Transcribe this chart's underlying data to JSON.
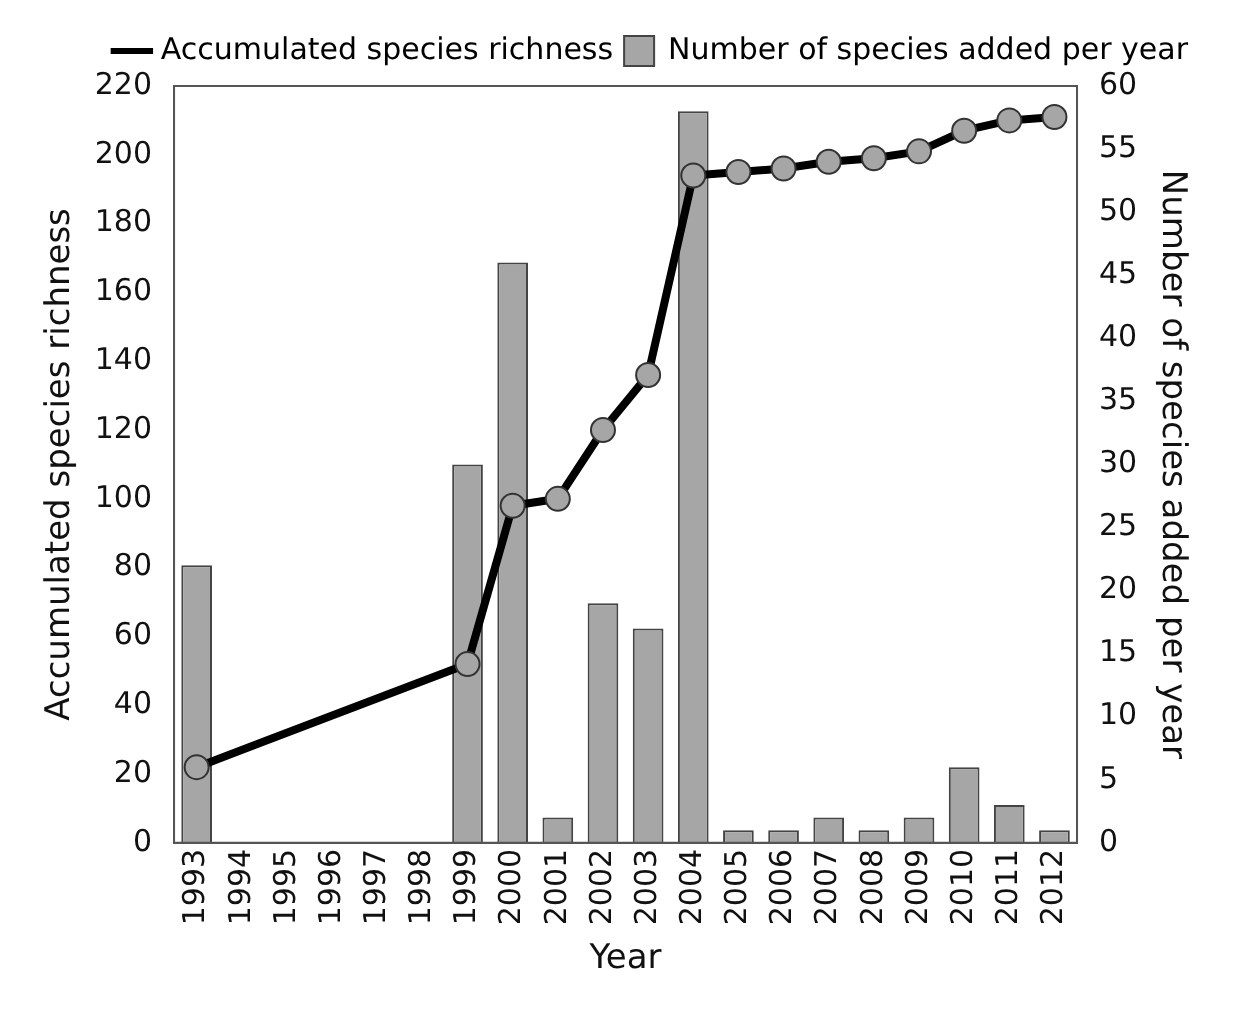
{
  "chart_data": {
    "type": "bar",
    "xlabel": "Year",
    "ylabel": "Accumulated species richness",
    "y2label": "Number of species added per year",
    "categories": [
      "1993",
      "1994",
      "1995",
      "1996",
      "1997",
      "1998",
      "1999",
      "2000",
      "2001",
      "2002",
      "2003",
      "2004",
      "2005",
      "2006",
      "2007",
      "2008",
      "2009",
      "2010",
      "2011",
      "2012"
    ],
    "series": [
      {
        "name": "Accumulated species richness",
        "type": "line",
        "color": "#000000",
        "marker": "circle",
        "values": [
          22,
          null,
          null,
          null,
          null,
          null,
          52,
          98,
          100,
          120,
          136,
          194,
          195,
          196,
          198,
          199,
          201,
          207,
          210,
          211
        ]
      },
      {
        "name": "Number of species added per year",
        "axis": "y2",
        "color": "#a6a6a6",
        "values": [
          22,
          null,
          null,
          null,
          null,
          null,
          30,
          46,
          2,
          19,
          17,
          58,
          1,
          1,
          2,
          1,
          2,
          6,
          3,
          1
        ]
      }
    ],
    "ylim": [
      0,
      220
    ],
    "yticks": [
      0,
      20,
      40,
      60,
      80,
      100,
      120,
      140,
      160,
      180,
      200,
      220
    ],
    "y2lim": [
      0,
      60
    ],
    "y2ticks": [
      0,
      5,
      10,
      15,
      20,
      25,
      30,
      35,
      40,
      45,
      50,
      55,
      60
    ],
    "grid": false,
    "legend": "top right"
  }
}
